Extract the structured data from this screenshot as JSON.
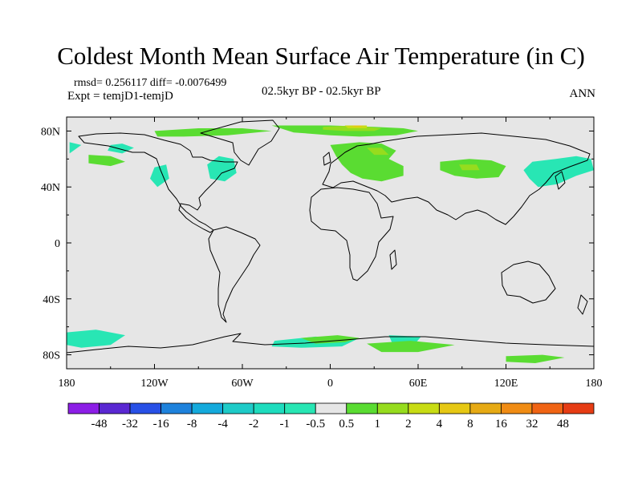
{
  "title": "Coldest Month Mean Surface Air Temperature (in C)",
  "stats": "rmsd= 0.256117 diff= -0.0076499",
  "expt": "Expt = temjD1-temjD",
  "period": "02.5kyr BP - 02.5kyr BP",
  "season": "ANN",
  "chart_data": {
    "type": "heatmap",
    "projection": "cylindrical-equidistant",
    "x_range": [
      -180,
      180
    ],
    "y_range": [
      -90,
      90
    ],
    "x_ticks": [
      {
        "value": -180,
        "label": "180"
      },
      {
        "value": -120,
        "label": "120W"
      },
      {
        "value": -60,
        "label": "60W"
      },
      {
        "value": 0,
        "label": "0"
      },
      {
        "value": 60,
        "label": "60E"
      },
      {
        "value": 120,
        "label": "120E"
      },
      {
        "value": 180,
        "label": "180"
      }
    ],
    "y_ticks": [
      {
        "value": 80,
        "label": "80N"
      },
      {
        "value": 40,
        "label": "40N"
      },
      {
        "value": 0,
        "label": "0"
      },
      {
        "value": -40,
        "label": "40S"
      },
      {
        "value": -80,
        "label": "80S"
      }
    ],
    "background_color": "#e6e6e6",
    "legend": {
      "colors": [
        "#8c1ee6",
        "#5a28d2",
        "#2850e6",
        "#1e82dc",
        "#14aadc",
        "#1ecbc8",
        "#1edcbe",
        "#28e6b4",
        "#e6e6e6",
        "#5adc32",
        "#96dc1e",
        "#c8dc14",
        "#e6c814",
        "#e6aa14",
        "#f08c14",
        "#f06414",
        "#e63c14"
      ],
      "labels": [
        "-48",
        "-32",
        "-16",
        "-8",
        "-4",
        "-2",
        "-1",
        "-0.5",
        "0.5",
        "1",
        "2",
        "4",
        "8",
        "16",
        "32",
        "48"
      ]
    },
    "anomaly_regions": [
      {
        "category": "-1 to -0.5",
        "color": "#28e6b4",
        "points": [
          [
            -178,
            72
          ],
          [
            -170,
            70
          ],
          [
            -178,
            64
          ]
        ]
      },
      {
        "category": "-1 to -0.5",
        "color": "#28e6b4",
        "points": [
          [
            -150,
            70
          ],
          [
            -142,
            71
          ],
          [
            -134,
            68
          ],
          [
            -142,
            64
          ],
          [
            -152,
            66
          ]
        ]
      },
      {
        "category": "-1 to -0.5",
        "color": "#28e6b4",
        "points": [
          [
            -120,
            54
          ],
          [
            -112,
            56
          ],
          [
            -110,
            46
          ],
          [
            -118,
            40
          ],
          [
            -123,
            46
          ]
        ]
      },
      {
        "category": "-1 to -0.5",
        "color": "#28e6b4",
        "points": [
          [
            -76,
            62
          ],
          [
            -66,
            60
          ],
          [
            -64,
            50
          ],
          [
            -72,
            44
          ],
          [
            -82,
            46
          ],
          [
            -84,
            56
          ]
        ]
      },
      {
        "category": "-1 to -0.5",
        "color": "#28e6b4",
        "points": [
          [
            138,
            58
          ],
          [
            154,
            60
          ],
          [
            168,
            62
          ],
          [
            178,
            60
          ],
          [
            180,
            52
          ],
          [
            168,
            48
          ],
          [
            155,
            42
          ],
          [
            142,
            40
          ],
          [
            136,
            46
          ],
          [
            132,
            52
          ]
        ]
      },
      {
        "category": "-1 to -0.5",
        "color": "#28e6b4",
        "points": [
          [
            -180,
            -64
          ],
          [
            -160,
            -62
          ],
          0,
          [
            -140,
            -66
          ],
          [
            -150,
            -73
          ],
          [
            -170,
            -75
          ],
          [
            -180,
            -73
          ]
        ]
      },
      {
        "category": "-1 to -0.5",
        "color": "#28e6b4",
        "points": [
          [
            -38,
            -70
          ],
          [
            -10,
            -67
          ],
          [
            18,
            -69
          ],
          [
            8,
            -74
          ],
          [
            -20,
            -75
          ],
          [
            -40,
            -74
          ]
        ]
      },
      {
        "category": "-1 to -0.5",
        "color": "#28e6b4",
        "points": [
          [
            40,
            -66
          ],
          [
            62,
            -67
          ],
          [
            58,
            -72
          ],
          [
            42,
            -71
          ]
        ]
      },
      {
        "category": "0.5 to 1",
        "color": "#5adc32",
        "points": [
          [
            -165,
            63
          ],
          [
            -150,
            62
          ],
          [
            -140,
            58
          ],
          [
            -150,
            55
          ],
          [
            -165,
            57
          ]
        ]
      },
      {
        "category": "0.5 to 1",
        "color": "#5adc32",
        "points": [
          [
            -120,
            80
          ],
          [
            -90,
            82
          ],
          [
            -60,
            82
          ],
          [
            -40,
            80
          ],
          [
            -70,
            77
          ],
          [
            -100,
            76
          ],
          [
            -118,
            76
          ]
        ]
      },
      {
        "category": "0.5 to 1",
        "color": "#5adc32",
        "points": [
          [
            -40,
            84
          ],
          [
            0,
            84
          ],
          [
            30,
            83
          ],
          [
            50,
            82
          ],
          [
            60,
            80
          ],
          [
            45,
            77
          ],
          [
            20,
            76
          ],
          [
            0,
            77
          ],
          [
            -25,
            79
          ]
        ]
      },
      {
        "category": "0.5 to 1",
        "color": "#5adc32",
        "points": [
          [
            0,
            70
          ],
          [
            20,
            72
          ],
          [
            35,
            71
          ],
          [
            45,
            66
          ],
          [
            40,
            60
          ],
          [
            50,
            55
          ],
          [
            50,
            48
          ],
          [
            35,
            44
          ],
          [
            22,
            46
          ],
          [
            14,
            50
          ],
          [
            8,
            56
          ],
          [
            4,
            62
          ]
        ]
      },
      {
        "category": "0.5 to 1",
        "color": "#5adc32",
        "points": [
          [
            75,
            58
          ],
          [
            95,
            60
          ],
          [
            110,
            59
          ],
          [
            120,
            55
          ],
          [
            115,
            47
          ],
          [
            100,
            46
          ],
          [
            85,
            48
          ],
          [
            75,
            52
          ]
        ]
      },
      {
        "category": "0.5 to 1",
        "color": "#5adc32",
        "points": [
          [
            -20,
            -68
          ],
          [
            5,
            -66
          ],
          [
            20,
            -68
          ],
          [
            10,
            -71
          ],
          [
            -10,
            -72
          ]
        ]
      },
      {
        "category": "0.5 to 1",
        "color": "#5adc32",
        "points": [
          [
            25,
            -72
          ],
          [
            55,
            -70
          ],
          [
            85,
            -73
          ],
          [
            60,
            -78
          ],
          [
            35,
            -78
          ]
        ]
      },
      {
        "category": "0.5 to 1",
        "color": "#5adc32",
        "points": [
          [
            120,
            -81
          ],
          [
            145,
            -80
          ],
          [
            160,
            -82
          ],
          [
            140,
            -86
          ],
          [
            120,
            -85
          ]
        ]
      },
      {
        "category": "1 to 2",
        "color": "#96dc1e",
        "points": [
          [
            -5,
            83
          ],
          [
            15,
            84
          ],
          [
            35,
            82
          ],
          [
            30,
            80
          ],
          [
            10,
            80
          ],
          [
            -5,
            81
          ]
        ]
      },
      {
        "category": "1 to 2",
        "color": "#96dc1e",
        "points": [
          [
            25,
            68
          ],
          [
            35,
            68
          ],
          [
            40,
            63
          ],
          [
            30,
            63
          ]
        ]
      },
      {
        "category": "1 to 2",
        "color": "#96dc1e",
        "points": [
          [
            88,
            56
          ],
          [
            100,
            56
          ],
          [
            102,
            52
          ],
          [
            90,
            52
          ]
        ]
      },
      {
        "category": "2 to 4",
        "color": "#c8dc14",
        "points": [
          [
            10,
            84
          ],
          [
            25,
            84
          ],
          [
            25,
            82
          ],
          [
            12,
            82
          ]
        ]
      },
      {
        "category": "4 to 8",
        "color": "#e6c814",
        "points": [
          [
            15,
            84
          ],
          [
            22,
            84
          ],
          [
            21,
            83
          ],
          [
            16,
            83
          ]
        ]
      }
    ]
  }
}
